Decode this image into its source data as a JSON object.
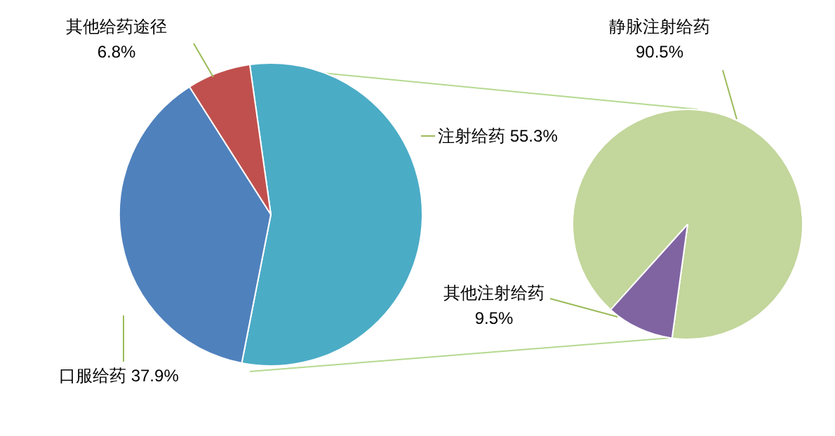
{
  "chart_data": [
    {
      "type": "pie",
      "categories": [
        "注射给药",
        "口服给药",
        "其他给药途径"
      ],
      "values": [
        55.3,
        37.9,
        6.8
      ],
      "colors": [
        "#4bacc6",
        "#4f81bd",
        "#c0504d"
      ],
      "value_labels": [
        "55.3%",
        "37.9%",
        "6.8%"
      ],
      "legend": false
    },
    {
      "type": "pie",
      "categories": [
        "静脉注射给药",
        "其他注射给药"
      ],
      "values": [
        90.5,
        9.5
      ],
      "colors": [
        "#c3d69b",
        "#8064a2"
      ],
      "value_labels": [
        "90.5%",
        "9.5%"
      ],
      "legend": false
    }
  ]
}
